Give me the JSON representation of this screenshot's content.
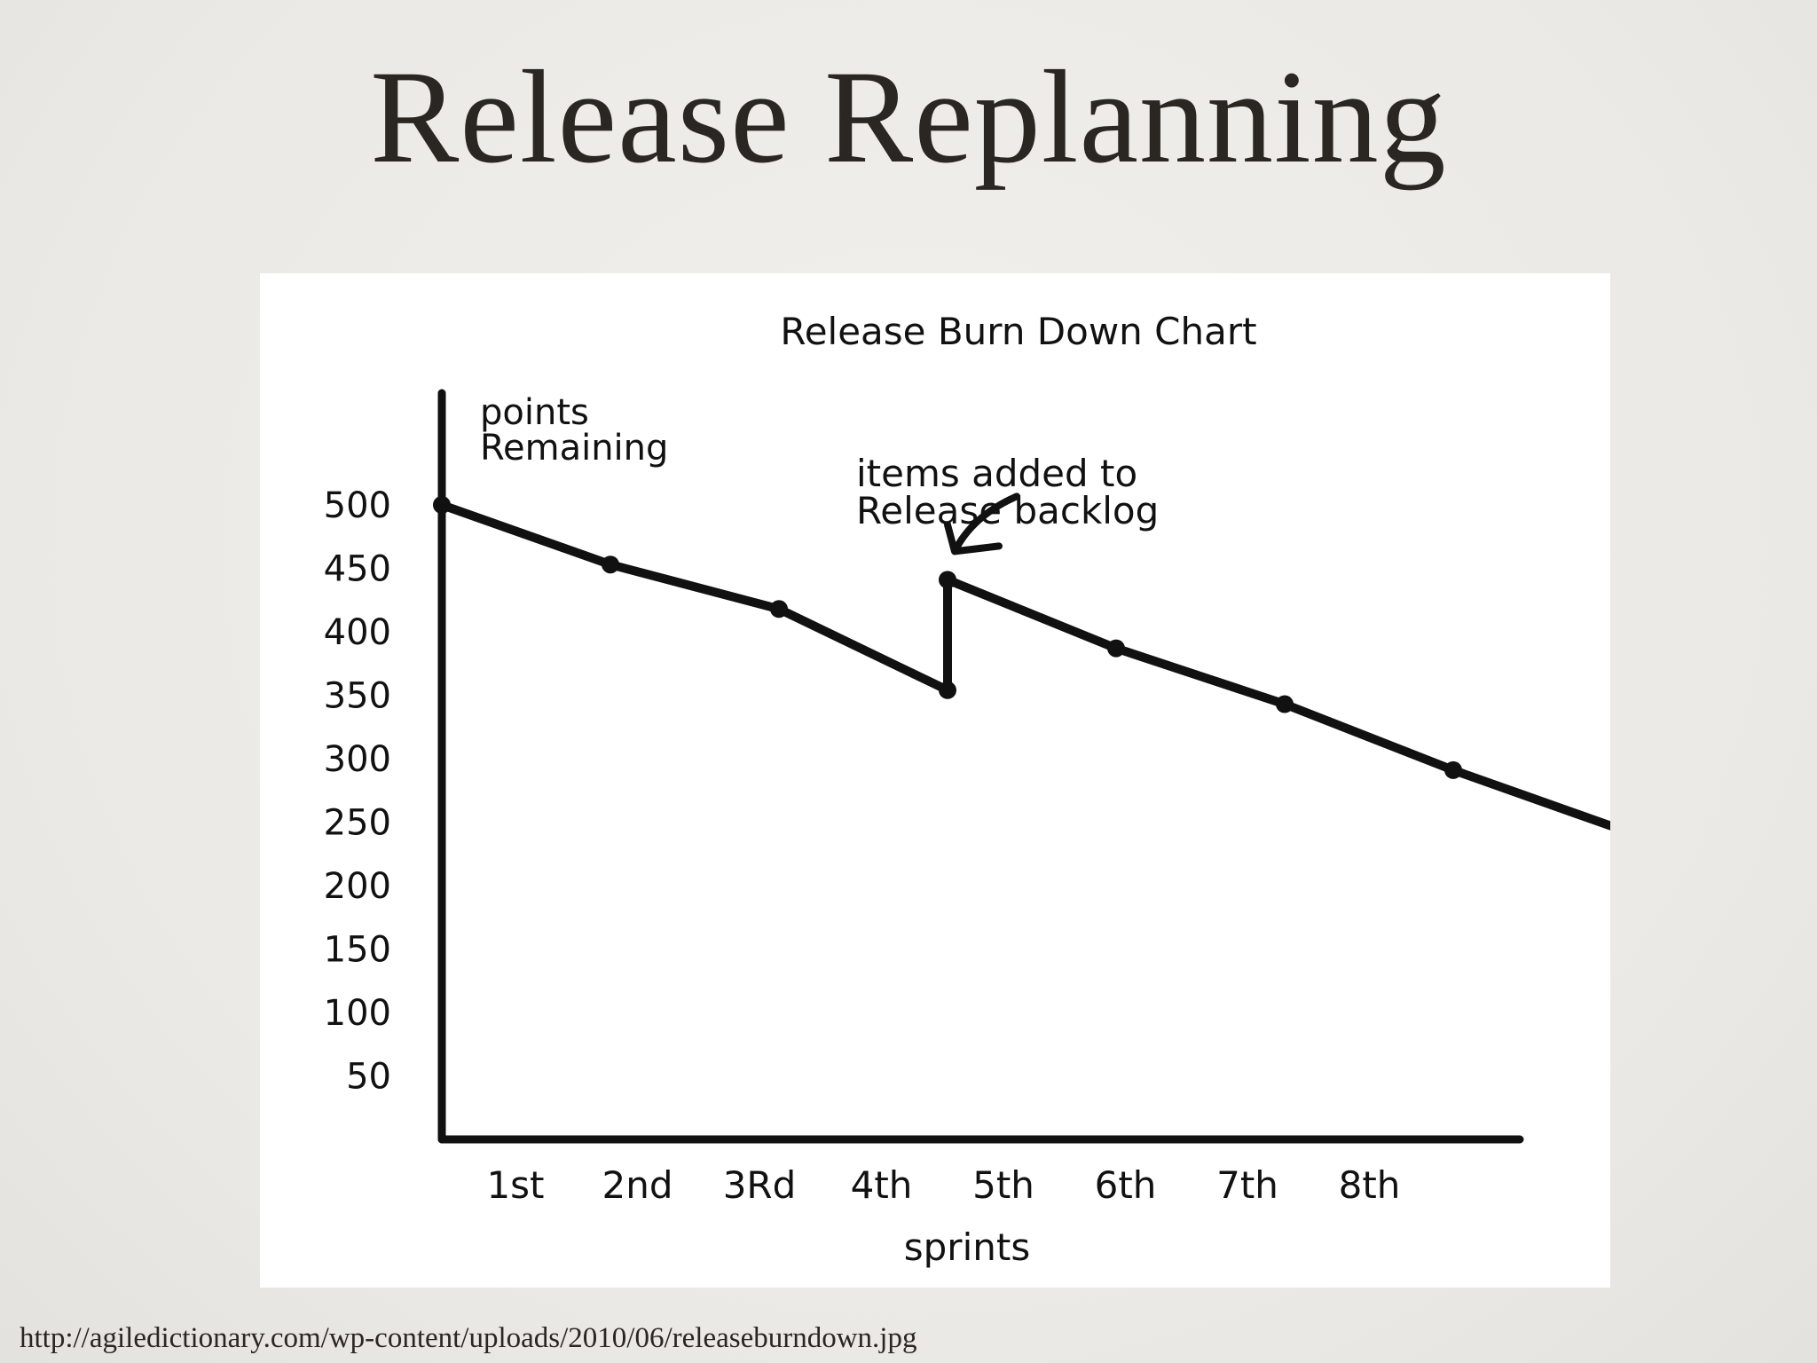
{
  "slide": {
    "title": "Release Replanning",
    "source_url": "http://agiledictionary.com/wp-content/uploads/2010/06/releaseburndown.jpg"
  },
  "chart_data": {
    "type": "line",
    "title": "Release Burn Down Chart",
    "ylabel_lines": [
      "points",
      "Remaining"
    ],
    "xlabel": "sprints",
    "y_ticks": [
      50,
      100,
      150,
      200,
      250,
      300,
      350,
      400,
      450,
      500
    ],
    "ylim": [
      0,
      550
    ],
    "x_categories": [
      "1st",
      "2nd",
      "3Rd",
      "4th",
      "5th",
      "6th",
      "7th",
      "8th"
    ],
    "series": [
      {
        "points": [
          {
            "x": 0,
            "y": 500
          },
          {
            "x": 1,
            "y": 453
          },
          {
            "x": 2,
            "y": 418
          },
          {
            "x": 3,
            "y": 354
          },
          {
            "x": 3,
            "y": 441
          },
          {
            "x": 4,
            "y": 387
          },
          {
            "x": 5,
            "y": 343
          },
          {
            "x": 6,
            "y": 291
          },
          {
            "x": 7,
            "y": 244
          }
        ]
      }
    ],
    "annotation": {
      "lines": [
        "items added to",
        "Release backlog"
      ],
      "points_to_index": 4
    },
    "grid": false,
    "line_color": "#111111"
  }
}
